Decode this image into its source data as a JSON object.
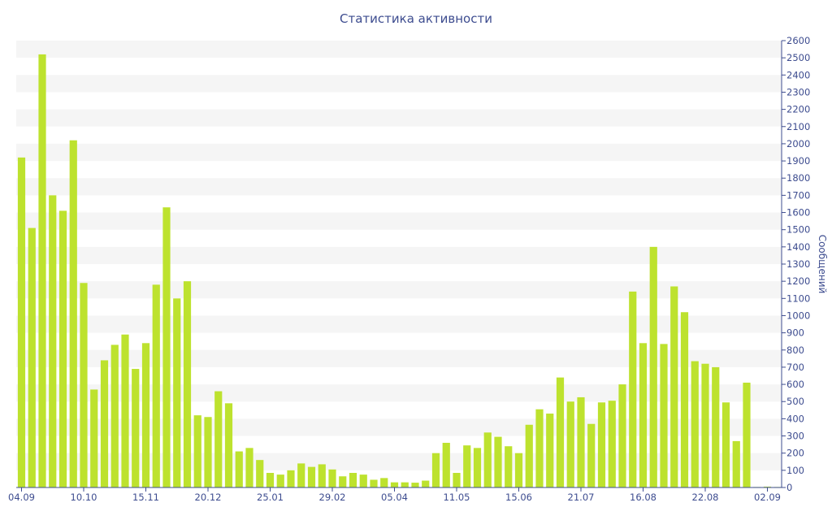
{
  "chart_data": {
    "type": "bar",
    "title": "Статистика активности",
    "ylabel": "Сообщений",
    "xlabel": "",
    "ylim": [
      0,
      2600
    ],
    "y_tick_step": 100,
    "grid": "horizontal alternating bands",
    "x_tick_labels": [
      {
        "index": 0,
        "label": "04.09"
      },
      {
        "index": 6,
        "label": "10.10"
      },
      {
        "index": 12,
        "label": "15.11"
      },
      {
        "index": 18,
        "label": "20.12"
      },
      {
        "index": 24,
        "label": "25.01"
      },
      {
        "index": 30,
        "label": "29.02"
      },
      {
        "index": 36,
        "label": "05.04"
      },
      {
        "index": 42,
        "label": "11.05"
      },
      {
        "index": 48,
        "label": "15.06"
      },
      {
        "index": 54,
        "label": "21.07"
      },
      {
        "index": 60,
        "label": "16.08"
      },
      {
        "index": 66,
        "label": "22.08"
      },
      {
        "index": 72,
        "label": "02.09"
      }
    ],
    "values": [
      1920,
      1510,
      2520,
      1700,
      1610,
      2020,
      1190,
      570,
      740,
      830,
      890,
      690,
      840,
      1180,
      1630,
      1100,
      1200,
      420,
      410,
      560,
      490,
      210,
      230,
      160,
      85,
      75,
      100,
      140,
      120,
      135,
      105,
      65,
      85,
      75,
      45,
      55,
      30,
      30,
      28,
      40,
      200,
      260,
      85,
      245,
      230,
      320,
      295,
      240,
      200,
      365,
      455,
      430,
      640,
      500,
      525,
      370,
      495,
      505,
      600,
      1140,
      840,
      1400,
      835,
      1170,
      1020,
      735,
      720,
      700,
      495,
      270,
      610,
      3,
      5,
      3
    ],
    "bar_color": "#bde22e"
  }
}
